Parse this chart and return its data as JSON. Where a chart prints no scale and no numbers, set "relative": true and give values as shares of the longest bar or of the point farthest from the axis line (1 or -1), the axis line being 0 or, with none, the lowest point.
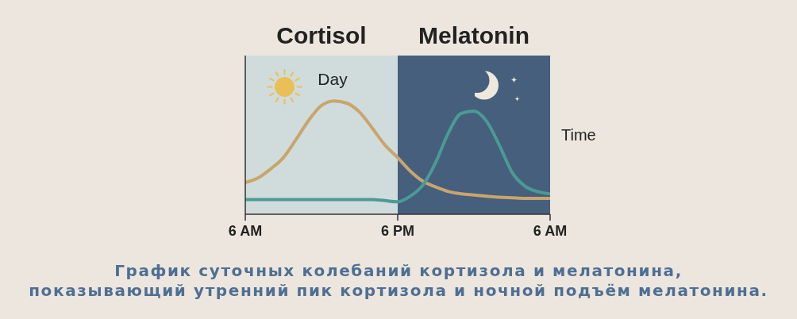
{
  "chart_data": {
    "type": "line",
    "relative": true,
    "xlabel": "Time",
    "annotations": [
      "Cortisol",
      "Melatonin",
      "График суточных колебаний кортизола и мелатонина,\nпоказывающий утренний пик кортизола и ночной подъём мелатонина."
    ],
    "categories": [
      "6 AM",
      null,
      null,
      null,
      null,
      null,
      null,
      null,
      null,
      null,
      null,
      null,
      "6 PM",
      null,
      null,
      null,
      null,
      null,
      null,
      null,
      null,
      null,
      null,
      null,
      "6 AM"
    ],
    "bands": [
      {
        "axis": "x",
        "from": "6 AM",
        "to": "6 PM",
        "label": "Day",
        "color": "#d0dcdc"
      }
    ],
    "series": [
      {
        "color": "#c9a56c",
        "values": [
          0.28,
          0.32,
          0.4,
          0.5,
          0.66,
          0.83,
          0.96,
          1,
          0.98,
          0.9,
          0.76,
          0.61,
          0.5,
          0.38,
          0.29,
          0.24,
          0.2,
          0.18,
          0.17,
          0.16,
          0.15,
          0.145,
          0.14,
          0.14,
          0.14
        ]
      },
      {
        "color": "#4c9a95",
        "values": [
          0.13,
          0.13,
          0.13,
          0.13,
          0.13,
          0.13,
          0.13,
          0.13,
          0.13,
          0.13,
          0.13,
          0.12,
          0.11,
          0.16,
          0.26,
          0.46,
          0.72,
          0.89,
          0.91,
          0.82,
          0.61,
          0.37,
          0.25,
          0.2,
          0.18
        ]
      }
    ]
  }
}
